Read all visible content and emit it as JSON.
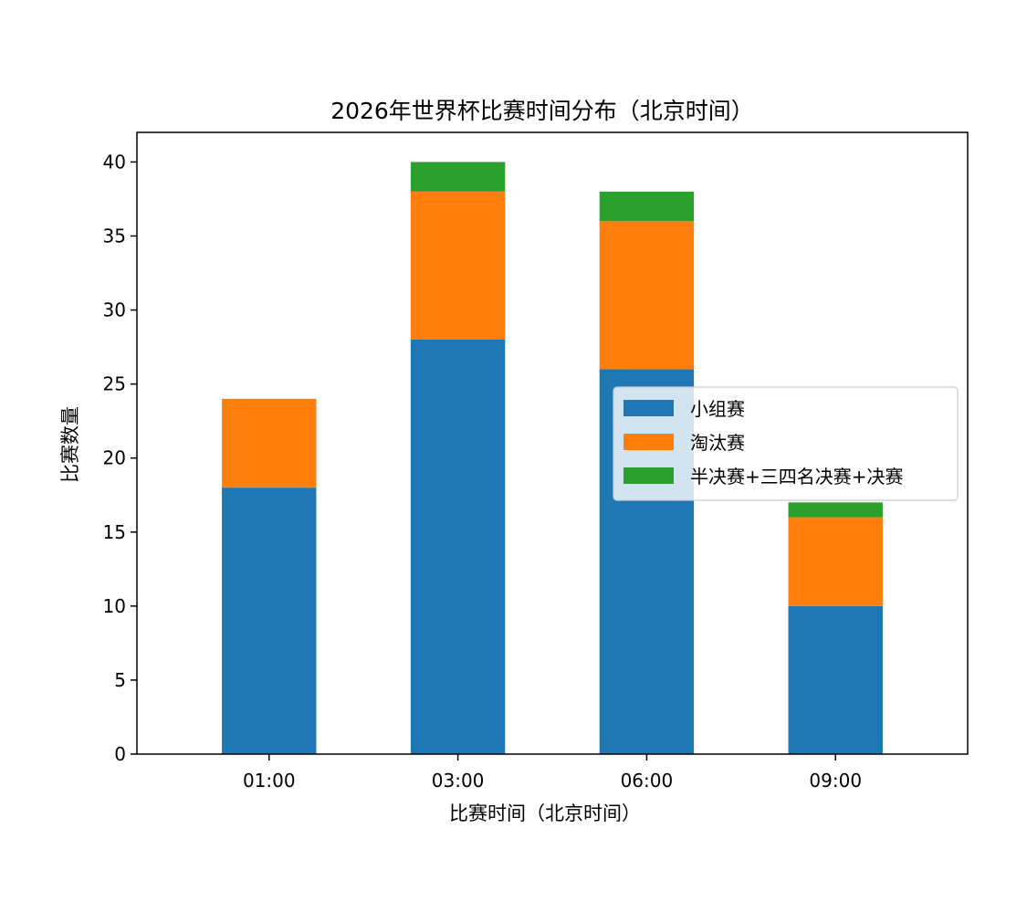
{
  "chart_data": {
    "type": "bar",
    "stacked": true,
    "title": "2026年世界杯比赛时间分布（北京时间）",
    "xlabel": "比赛时间（北京时间）",
    "ylabel": "比赛数量",
    "categories": [
      "01:00",
      "03:00",
      "06:00",
      "09:00"
    ],
    "ylim": [
      0,
      42
    ],
    "yticks": [
      0,
      5,
      10,
      15,
      20,
      25,
      30,
      35,
      40
    ],
    "grid": false,
    "legend_position": "center-right",
    "series": [
      {
        "name": "小组赛",
        "color": "#1f77b4",
        "values": [
          18,
          28,
          26,
          10
        ]
      },
      {
        "name": "淘汰赛",
        "color": "#ff7f0e",
        "values": [
          6,
          10,
          10,
          6
        ]
      },
      {
        "name": "半决赛+三四名决赛+决赛",
        "color": "#2ca02c",
        "values": [
          0,
          2,
          2,
          1
        ]
      }
    ]
  }
}
